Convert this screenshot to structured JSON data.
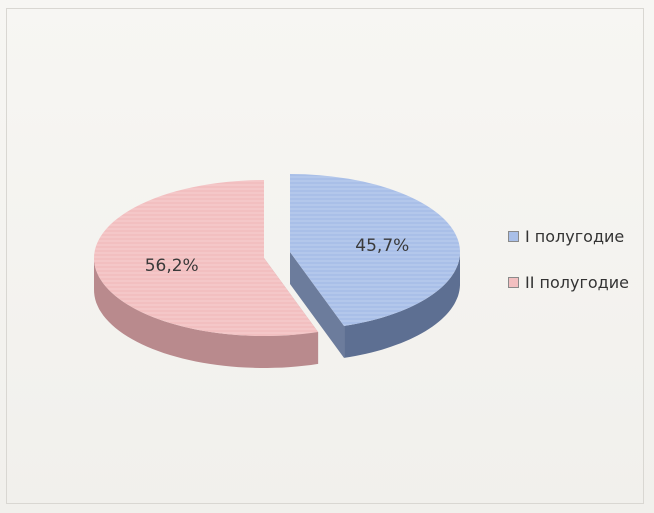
{
  "colors": {
    "series1_top": "#a9bfe8",
    "series1_side": "#5d6f92",
    "series2_top": "#f2bfc0",
    "series2_side": "#b98a8d"
  },
  "chart_data": {
    "type": "pie",
    "style": "3d-exploded",
    "title": "",
    "legend_position": "right",
    "slices": [
      {
        "name": "I полугодие",
        "value": 45.7,
        "label": "45,7%",
        "color": "#a9bfe8"
      },
      {
        "name": "II полугодие",
        "value": 56.2,
        "label": "56,2%",
        "color": "#f2bfc0"
      }
    ]
  }
}
